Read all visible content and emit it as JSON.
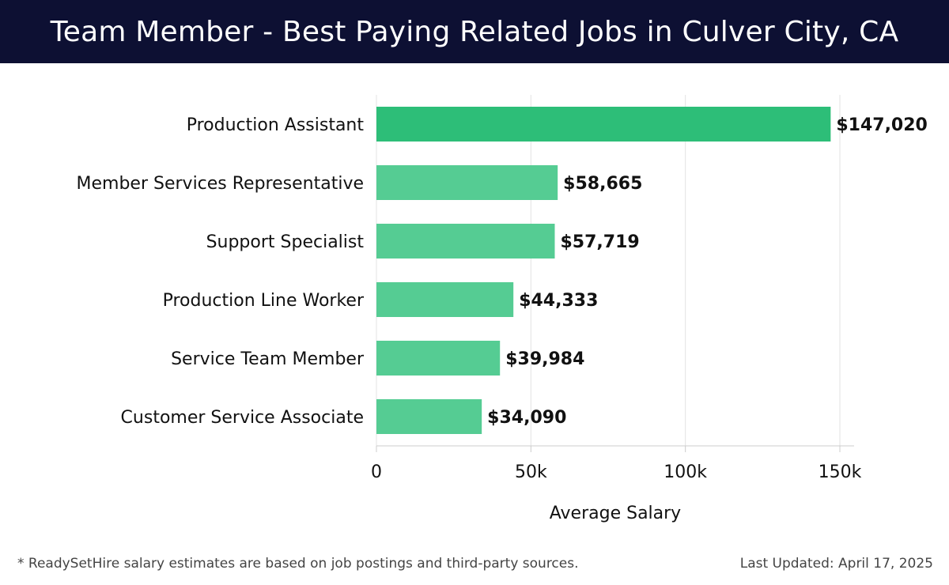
{
  "header": {
    "title": "Team Member - Best Paying Related Jobs in Culver City, CA"
  },
  "chart_data": {
    "type": "bar",
    "orientation": "horizontal",
    "title": "Team Member - Best Paying Related Jobs in Culver City, CA",
    "categories": [
      "Production Assistant",
      "Member Services Representative",
      "Support Specialist",
      "Production Line Worker",
      "Service Team Member",
      "Customer Service Associate"
    ],
    "values": [
      147020,
      58665,
      57719,
      44333,
      39984,
      34090
    ],
    "value_labels": [
      "$147,020",
      "$58,665",
      "$57,719",
      "$44,333",
      "$39,984",
      "$34,090"
    ],
    "xlabel": "Average Salary",
    "ylabel": "",
    "xlim": [
      0,
      150000
    ],
    "ticks": [
      0,
      50000,
      100000,
      150000
    ],
    "tick_labels": [
      "0",
      "50k",
      "100k",
      "150k"
    ],
    "grid": true,
    "colors": {
      "highlight": "#2dbe78",
      "bar": "#55cc93",
      "grid": "#e3e3e3",
      "axis": "#cccccc"
    }
  },
  "footer": {
    "note": "* ReadySetHire salary estimates are based on job postings and third-party sources.",
    "updated": "Last Updated: April 17, 2025"
  }
}
